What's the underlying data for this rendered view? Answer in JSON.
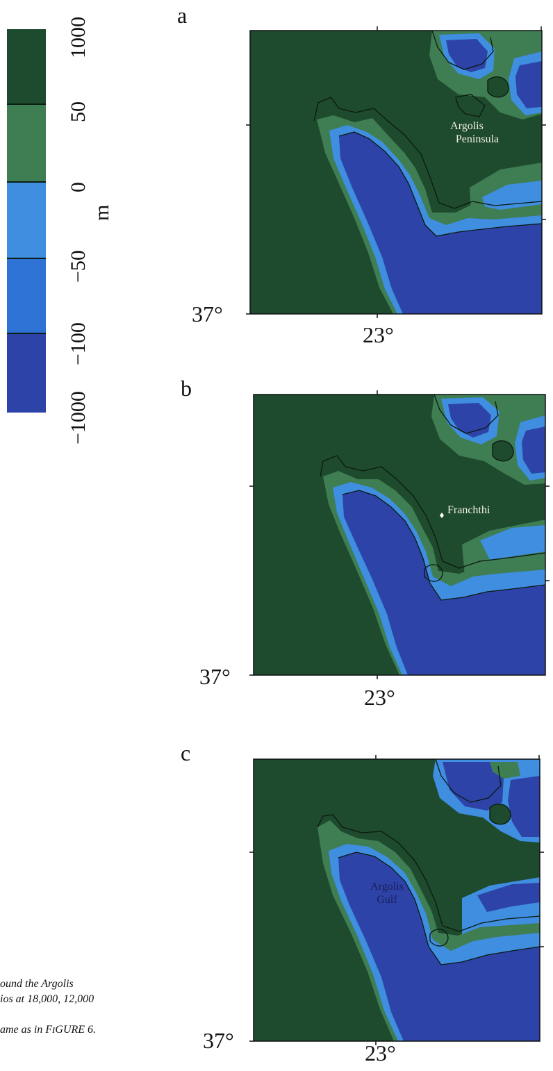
{
  "legend": {
    "unit": "m",
    "tick_labels": [
      "1000",
      "50",
      "0",
      "−50",
      "−100",
      "−1000"
    ],
    "bands": [
      {
        "range": "50 to 1000",
        "color": "#1e4a2e"
      },
      {
        "range": "0 to 50",
        "color": "#3f7d52"
      },
      {
        "range": "-50 to 0",
        "color": "#3f8ee0"
      },
      {
        "range": "-100 to -50",
        "color": "#2f72d6"
      },
      {
        "range": "-1000 to -100",
        "color": "#2e43a8"
      }
    ],
    "separator_color": "#0b1f14"
  },
  "colors": {
    "land_high": "#1e4a2e",
    "land_low": "#3f7d52",
    "shelf_shallow": "#3f8ee0",
    "shelf_deep": "#2f72d6",
    "deep_water": "#2e43a8",
    "coastline": "#0b1a0f"
  },
  "panels": [
    {
      "id": "a",
      "letter": "a",
      "lat_label": "37°",
      "lon_label": "23°",
      "labels": [
        {
          "lines": [
            "Argolis",
            "Peninsula"
          ],
          "color": "#f1f1e6"
        }
      ]
    },
    {
      "id": "b",
      "letter": "b",
      "lat_label": "37°",
      "lon_label": "23°",
      "labels": [
        {
          "lines": [
            "Franchthi"
          ],
          "color": "#f1f1e6",
          "marker": "site-marker"
        }
      ]
    },
    {
      "id": "c",
      "letter": "c",
      "lat_label": "37°",
      "lon_label": "23°",
      "labels": [
        {
          "lines": [
            "Argolis",
            "Gulf"
          ],
          "color": "#1a1f5a"
        }
      ]
    }
  ],
  "caption": {
    "lines": [
      "ound the Argolis",
      "ios at 18,000, 12,000",
      "",
      "ame as in FɪGURE 6."
    ]
  }
}
